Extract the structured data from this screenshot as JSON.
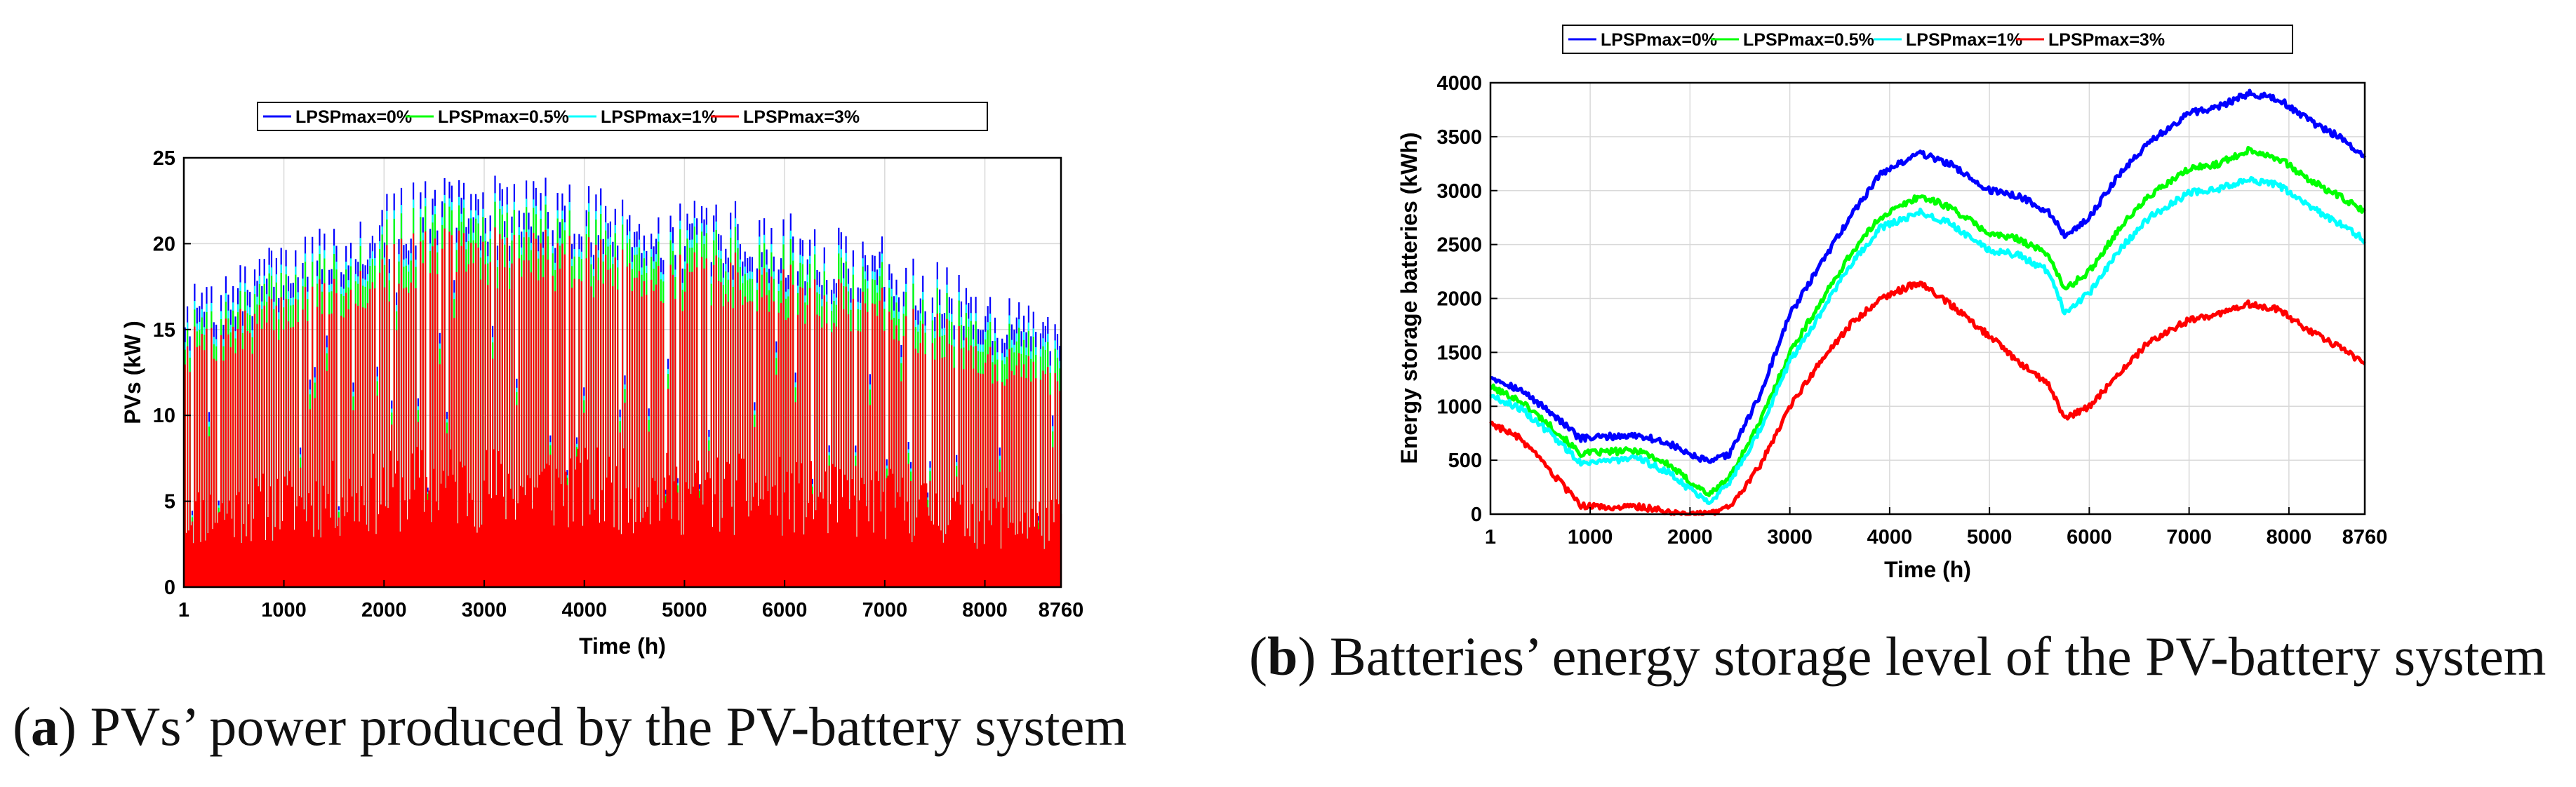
{
  "colors": {
    "series": [
      "#0000ff",
      "#00ff00",
      "#00ffff",
      "#ff0000"
    ],
    "axis": "#000000",
    "grid": "#d9d9d9"
  },
  "chart_data": [
    {
      "type": "bar",
      "title": "",
      "panel": "a",
      "xlabel": "Time (h)",
      "ylabel": "PVs (kW )",
      "xlim": [
        1,
        8760
      ],
      "ylim": [
        0,
        25
      ],
      "xticks": [
        "1",
        "1000",
        "2000",
        "3000",
        "4000",
        "5000",
        "6000",
        "7000",
        "8000",
        "8760"
      ],
      "yticks": [
        "0",
        "5",
        "10",
        "15",
        "20",
        "25"
      ],
      "grid": true,
      "legend_position": "top",
      "series": [
        {
          "name": "LPSPmax=0%",
          "color": "#0000ff"
        },
        {
          "name": "LPSPmax=0.5%",
          "color": "#00ff00"
        },
        {
          "name": "LPSPmax=1%",
          "color": "#00ffff"
        },
        {
          "name": "LPSPmax=3%",
          "color": "#ff0000"
        }
      ],
      "daily_peak_envelope": {
        "x": [
          1,
          500,
          1000,
          1500,
          2000,
          2500,
          3000,
          3500,
          4000,
          4500,
          5000,
          5500,
          6000,
          6500,
          7000,
          7500,
          8000,
          8500,
          8760
        ],
        "LPSPmax=0%": [
          17.5,
          18.5,
          20.5,
          21.5,
          23.0,
          24.5,
          24.0,
          24.3,
          23.5,
          23.2,
          22.5,
          22.5,
          22.0,
          21.0,
          20.5,
          19.0,
          17.5,
          16.5,
          16.0
        ],
        "LPSPmax=1%": [
          16.5,
          17.5,
          19.5,
          20.5,
          22.0,
          23.5,
          23.0,
          23.2,
          22.5,
          22.2,
          21.5,
          21.5,
          21.0,
          20.0,
          19.5,
          18.0,
          16.5,
          15.5,
          15.0
        ],
        "LPSPmax=0.5%": [
          16.0,
          17.0,
          19.0,
          20.0,
          21.5,
          23.0,
          22.5,
          22.7,
          22.0,
          21.7,
          21.0,
          21.0,
          20.5,
          19.5,
          19.0,
          17.5,
          16.0,
          15.0,
          14.5
        ],
        "LPSPmax=3%": [
          15.0,
          16.0,
          17.5,
          18.5,
          20.0,
          21.5,
          21.0,
          21.2,
          20.5,
          20.2,
          19.5,
          19.5,
          19.0,
          18.0,
          17.5,
          16.0,
          14.5,
          13.5,
          13.0
        ]
      }
    },
    {
      "type": "line",
      "title": "",
      "panel": "b",
      "xlabel": "Time (h)",
      "ylabel": "Energy storage batteries (kWh)",
      "xlim": [
        1,
        8760
      ],
      "ylim": [
        0,
        4000
      ],
      "xticks": [
        "1",
        "1000",
        "2000",
        "3000",
        "4000",
        "5000",
        "6000",
        "7000",
        "8000",
        "8760"
      ],
      "yticks": [
        "0",
        "500",
        "1000",
        "1500",
        "2000",
        "2500",
        "3000",
        "3500",
        "4000"
      ],
      "grid": true,
      "legend_position": "top",
      "x": [
        1,
        300,
        600,
        900,
        1200,
        1500,
        1800,
        2000,
        2200,
        2400,
        2700,
        3000,
        3300,
        3600,
        3900,
        4300,
        4600,
        5000,
        5300,
        5600,
        5750,
        6000,
        6300,
        6600,
        7000,
        7300,
        7600,
        7900,
        8200,
        8500,
        8760
      ],
      "series": [
        {
          "name": "LPSPmax=0%",
          "color": "#0000ff",
          "values": [
            1280,
            1150,
            950,
            700,
            720,
            730,
            650,
            550,
            480,
            560,
            1100,
            1850,
            2300,
            2750,
            3150,
            3350,
            3250,
            3000,
            2950,
            2800,
            2580,
            2750,
            3150,
            3450,
            3720,
            3780,
            3900,
            3850,
            3650,
            3500,
            3320
          ]
        },
        {
          "name": "LPSPmax=0.5%",
          "color": "#00ff00",
          "values": [
            1180,
            1050,
            820,
            560,
            580,
            590,
            450,
            300,
            180,
            350,
            850,
            1500,
            1950,
            2400,
            2750,
            2950,
            2850,
            2600,
            2550,
            2400,
            2080,
            2250,
            2650,
            2950,
            3200,
            3250,
            3380,
            3300,
            3100,
            2950,
            2800
          ]
        },
        {
          "name": "LPSPmax=1%",
          "color": "#00ffff",
          "values": [
            1100,
            980,
            750,
            480,
            500,
            510,
            380,
            230,
            120,
            300,
            780,
            1420,
            1850,
            2300,
            2650,
            2800,
            2700,
            2450,
            2400,
            2250,
            1870,
            2050,
            2450,
            2750,
            2980,
            3020,
            3100,
            3050,
            2850,
            2700,
            2540
          ]
        },
        {
          "name": "LPSPmax=3%",
          "color": "#ff0000",
          "values": [
            850,
            700,
            400,
            80,
            60,
            70,
            20,
            0,
            0,
            60,
            450,
            1000,
            1400,
            1750,
            2000,
            2150,
            1950,
            1650,
            1400,
            1200,
            880,
            1000,
            1300,
            1600,
            1800,
            1850,
            1950,
            1900,
            1700,
            1550,
            1400
          ]
        }
      ]
    }
  ],
  "captions": {
    "a_label": "a",
    "a_text": " PVs’ power produced by the PV-battery system",
    "b_label": "b",
    "b_text": " Batteries’ energy storage level of the PV-battery system"
  }
}
